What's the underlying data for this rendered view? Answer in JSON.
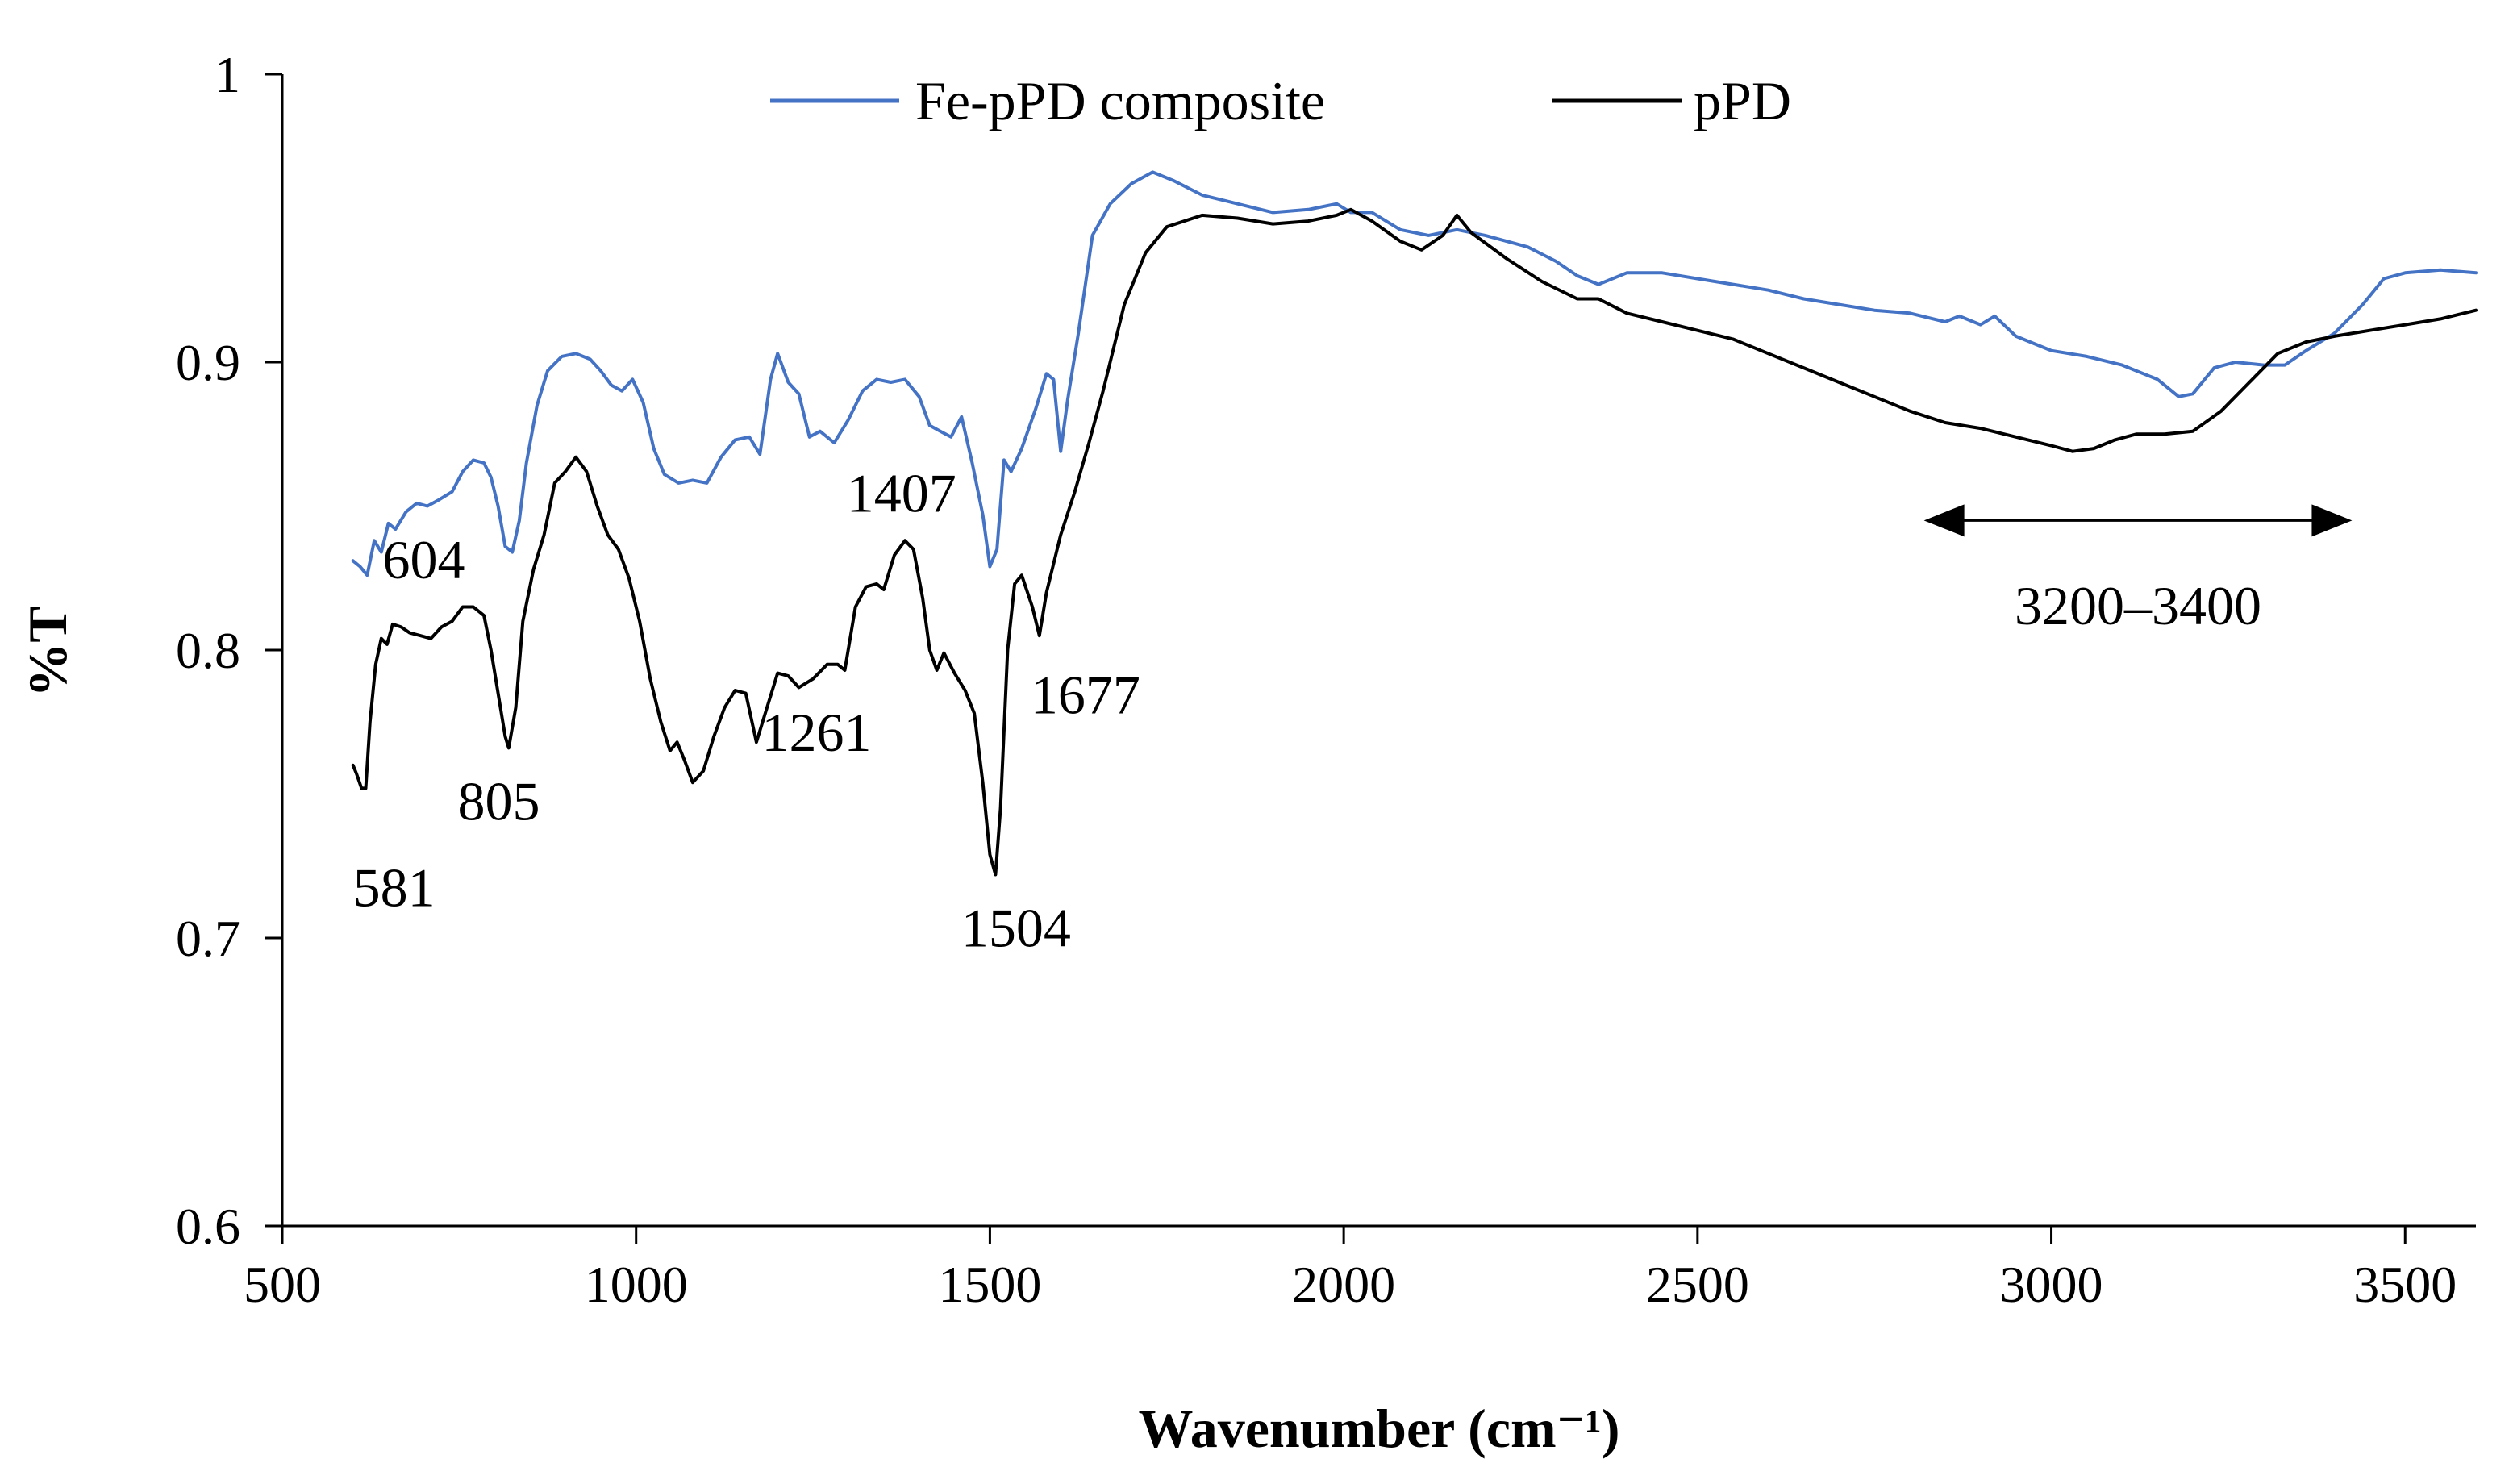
{
  "chart_data": {
    "type": "line",
    "title": "",
    "xlabel": "Wavenumber (cm⁻¹)",
    "ylabel": "%T",
    "xlim": [
      500,
      3600
    ],
    "ylim": [
      0.6,
      1.0
    ],
    "xticks": [
      500,
      1000,
      1500,
      2000,
      2500,
      3000,
      3500
    ],
    "xtick_labels": [
      "500",
      "1000",
      "1500",
      "2000",
      "2500",
      "3000",
      "3500"
    ],
    "yticks": [
      0.6,
      0.7,
      0.8,
      0.9,
      1.0
    ],
    "ytick_labels": [
      "0.6",
      "0.7",
      "0.8",
      "0.9",
      "1"
    ],
    "grid": false,
    "legend_position": "top",
    "series": [
      {
        "name": "Fe-pPD composite",
        "color": "#4472C4",
        "points": [
          [
            600,
            0.831
          ],
          [
            610,
            0.829
          ],
          [
            620,
            0.826
          ],
          [
            630,
            0.838
          ],
          [
            640,
            0.834
          ],
          [
            650,
            0.844
          ],
          [
            660,
            0.842
          ],
          [
            675,
            0.848
          ],
          [
            690,
            0.851
          ],
          [
            705,
            0.85
          ],
          [
            720,
            0.852
          ],
          [
            740,
            0.855
          ],
          [
            755,
            0.862
          ],
          [
            770,
            0.866
          ],
          [
            785,
            0.865
          ],
          [
            795,
            0.86
          ],
          [
            805,
            0.85
          ],
          [
            815,
            0.836
          ],
          [
            825,
            0.834
          ],
          [
            835,
            0.845
          ],
          [
            845,
            0.865
          ],
          [
            860,
            0.885
          ],
          [
            875,
            0.897
          ],
          [
            895,
            0.902
          ],
          [
            915,
            0.903
          ],
          [
            935,
            0.901
          ],
          [
            950,
            0.897
          ],
          [
            965,
            0.892
          ],
          [
            980,
            0.89
          ],
          [
            995,
            0.894
          ],
          [
            1010,
            0.886
          ],
          [
            1025,
            0.87
          ],
          [
            1040,
            0.861
          ],
          [
            1060,
            0.858
          ],
          [
            1080,
            0.859
          ],
          [
            1100,
            0.858
          ],
          [
            1120,
            0.867
          ],
          [
            1140,
            0.873
          ],
          [
            1160,
            0.874
          ],
          [
            1175,
            0.868
          ],
          [
            1190,
            0.894
          ],
          [
            1200,
            0.903
          ],
          [
            1215,
            0.893
          ],
          [
            1230,
            0.889
          ],
          [
            1245,
            0.874
          ],
          [
            1260,
            0.876
          ],
          [
            1280,
            0.872
          ],
          [
            1300,
            0.88
          ],
          [
            1320,
            0.89
          ],
          [
            1340,
            0.894
          ],
          [
            1360,
            0.893
          ],
          [
            1380,
            0.894
          ],
          [
            1400,
            0.888
          ],
          [
            1415,
            0.878
          ],
          [
            1430,
            0.876
          ],
          [
            1445,
            0.874
          ],
          [
            1460,
            0.881
          ],
          [
            1475,
            0.865
          ],
          [
            1490,
            0.847
          ],
          [
            1500,
            0.829
          ],
          [
            1510,
            0.835
          ],
          [
            1520,
            0.866
          ],
          [
            1530,
            0.862
          ],
          [
            1545,
            0.87
          ],
          [
            1565,
            0.884
          ],
          [
            1580,
            0.896
          ],
          [
            1590,
            0.894
          ],
          [
            1600,
            0.869
          ],
          [
            1610,
            0.887
          ],
          [
            1625,
            0.91
          ],
          [
            1645,
            0.944
          ],
          [
            1670,
            0.955
          ],
          [
            1700,
            0.962
          ],
          [
            1730,
            0.966
          ],
          [
            1760,
            0.963
          ],
          [
            1800,
            0.958
          ],
          [
            1850,
            0.955
          ],
          [
            1900,
            0.952
          ],
          [
            1950,
            0.953
          ],
          [
            1990,
            0.955
          ],
          [
            2010,
            0.952
          ],
          [
            2040,
            0.952
          ],
          [
            2080,
            0.946
          ],
          [
            2120,
            0.944
          ],
          [
            2160,
            0.946
          ],
          [
            2200,
            0.944
          ],
          [
            2260,
            0.94
          ],
          [
            2300,
            0.935
          ],
          [
            2330,
            0.93
          ],
          [
            2360,
            0.927
          ],
          [
            2400,
            0.931
          ],
          [
            2450,
            0.931
          ],
          [
            2500,
            0.929
          ],
          [
            2550,
            0.927
          ],
          [
            2600,
            0.925
          ],
          [
            2650,
            0.922
          ],
          [
            2700,
            0.92
          ],
          [
            2750,
            0.918
          ],
          [
            2800,
            0.917
          ],
          [
            2850,
            0.914
          ],
          [
            2870,
            0.916
          ],
          [
            2900,
            0.913
          ],
          [
            2920,
            0.916
          ],
          [
            2950,
            0.909
          ],
          [
            3000,
            0.904
          ],
          [
            3050,
            0.902
          ],
          [
            3100,
            0.899
          ],
          [
            3150,
            0.894
          ],
          [
            3180,
            0.888
          ],
          [
            3200,
            0.889
          ],
          [
            3230,
            0.898
          ],
          [
            3260,
            0.9
          ],
          [
            3300,
            0.899
          ],
          [
            3330,
            0.899
          ],
          [
            3360,
            0.904
          ],
          [
            3400,
            0.91
          ],
          [
            3440,
            0.92
          ],
          [
            3470,
            0.929
          ],
          [
            3500,
            0.931
          ],
          [
            3550,
            0.932
          ],
          [
            3600,
            0.931
          ]
        ]
      },
      {
        "name": "pPD",
        "color": "#000000",
        "points": [
          [
            600,
            0.76
          ],
          [
            605,
            0.757
          ],
          [
            612,
            0.752
          ],
          [
            618,
            0.752
          ],
          [
            624,
            0.775
          ],
          [
            632,
            0.795
          ],
          [
            640,
            0.804
          ],
          [
            648,
            0.802
          ],
          [
            656,
            0.809
          ],
          [
            668,
            0.808
          ],
          [
            680,
            0.806
          ],
          [
            695,
            0.805
          ],
          [
            710,
            0.804
          ],
          [
            725,
            0.808
          ],
          [
            740,
            0.81
          ],
          [
            755,
            0.815
          ],
          [
            770,
            0.815
          ],
          [
            785,
            0.812
          ],
          [
            795,
            0.8
          ],
          [
            805,
            0.785
          ],
          [
            815,
            0.77
          ],
          [
            820,
            0.766
          ],
          [
            830,
            0.78
          ],
          [
            840,
            0.81
          ],
          [
            855,
            0.828
          ],
          [
            870,
            0.84
          ],
          [
            885,
            0.858
          ],
          [
            900,
            0.862
          ],
          [
            915,
            0.867
          ],
          [
            930,
            0.862
          ],
          [
            945,
            0.85
          ],
          [
            960,
            0.84
          ],
          [
            975,
            0.835
          ],
          [
            990,
            0.825
          ],
          [
            1005,
            0.81
          ],
          [
            1020,
            0.79
          ],
          [
            1035,
            0.775
          ],
          [
            1048,
            0.765
          ],
          [
            1058,
            0.768
          ],
          [
            1068,
            0.762
          ],
          [
            1080,
            0.754
          ],
          [
            1095,
            0.758
          ],
          [
            1110,
            0.77
          ],
          [
            1125,
            0.78
          ],
          [
            1140,
            0.786
          ],
          [
            1155,
            0.785
          ],
          [
            1170,
            0.768
          ],
          [
            1185,
            0.78
          ],
          [
            1200,
            0.792
          ],
          [
            1215,
            0.791
          ],
          [
            1230,
            0.787
          ],
          [
            1250,
            0.79
          ],
          [
            1270,
            0.795
          ],
          [
            1285,
            0.795
          ],
          [
            1295,
            0.793
          ],
          [
            1310,
            0.815
          ],
          [
            1325,
            0.822
          ],
          [
            1340,
            0.823
          ],
          [
            1350,
            0.821
          ],
          [
            1365,
            0.833
          ],
          [
            1380,
            0.838
          ],
          [
            1392,
            0.835
          ],
          [
            1405,
            0.818
          ],
          [
            1415,
            0.8
          ],
          [
            1425,
            0.793
          ],
          [
            1435,
            0.799
          ],
          [
            1450,
            0.792
          ],
          [
            1465,
            0.786
          ],
          [
            1478,
            0.778
          ],
          [
            1490,
            0.754
          ],
          [
            1500,
            0.729
          ],
          [
            1508,
            0.722
          ],
          [
            1515,
            0.745
          ],
          [
            1525,
            0.8
          ],
          [
            1535,
            0.823
          ],
          [
            1545,
            0.826
          ],
          [
            1560,
            0.815
          ],
          [
            1570,
            0.805
          ],
          [
            1580,
            0.82
          ],
          [
            1600,
            0.84
          ],
          [
            1620,
            0.855
          ],
          [
            1640,
            0.872
          ],
          [
            1660,
            0.89
          ],
          [
            1690,
            0.92
          ],
          [
            1720,
            0.938
          ],
          [
            1750,
            0.947
          ],
          [
            1800,
            0.951
          ],
          [
            1850,
            0.95
          ],
          [
            1900,
            0.948
          ],
          [
            1950,
            0.949
          ],
          [
            1990,
            0.951
          ],
          [
            2010,
            0.953
          ],
          [
            2040,
            0.949
          ],
          [
            2080,
            0.942
          ],
          [
            2110,
            0.939
          ],
          [
            2140,
            0.944
          ],
          [
            2160,
            0.951
          ],
          [
            2180,
            0.945
          ],
          [
            2230,
            0.936
          ],
          [
            2280,
            0.928
          ],
          [
            2330,
            0.922
          ],
          [
            2360,
            0.922
          ],
          [
            2400,
            0.917
          ],
          [
            2450,
            0.914
          ],
          [
            2500,
            0.911
          ],
          [
            2550,
            0.908
          ],
          [
            2600,
            0.903
          ],
          [
            2650,
            0.898
          ],
          [
            2700,
            0.893
          ],
          [
            2750,
            0.888
          ],
          [
            2800,
            0.883
          ],
          [
            2850,
            0.879
          ],
          [
            2900,
            0.877
          ],
          [
            2950,
            0.874
          ],
          [
            3000,
            0.871
          ],
          [
            3030,
            0.869
          ],
          [
            3060,
            0.87
          ],
          [
            3090,
            0.873
          ],
          [
            3120,
            0.875
          ],
          [
            3160,
            0.875
          ],
          [
            3200,
            0.876
          ],
          [
            3240,
            0.883
          ],
          [
            3280,
            0.893
          ],
          [
            3320,
            0.903
          ],
          [
            3360,
            0.907
          ],
          [
            3400,
            0.909
          ],
          [
            3450,
            0.911
          ],
          [
            3500,
            0.913
          ],
          [
            3550,
            0.915
          ],
          [
            3600,
            0.918
          ]
        ]
      }
    ],
    "peak_labels": [
      {
        "text": "604",
        "x": 700,
        "y": 0.825
      },
      {
        "text": "581",
        "x": 658,
        "y": 0.711
      },
      {
        "text": "805",
        "x": 806,
        "y": 0.741
      },
      {
        "text": "1407",
        "x": 1375,
        "y": 0.848
      },
      {
        "text": "1261",
        "x": 1255,
        "y": 0.765
      },
      {
        "text": "1504",
        "x": 1537,
        "y": 0.697
      },
      {
        "text": "1677",
        "x": 1635,
        "y": 0.778
      }
    ],
    "range_annotation": {
      "text": "3200–3400",
      "x_start": 2820,
      "x_end": 3425,
      "y": 0.845,
      "label_y": 0.809
    }
  }
}
